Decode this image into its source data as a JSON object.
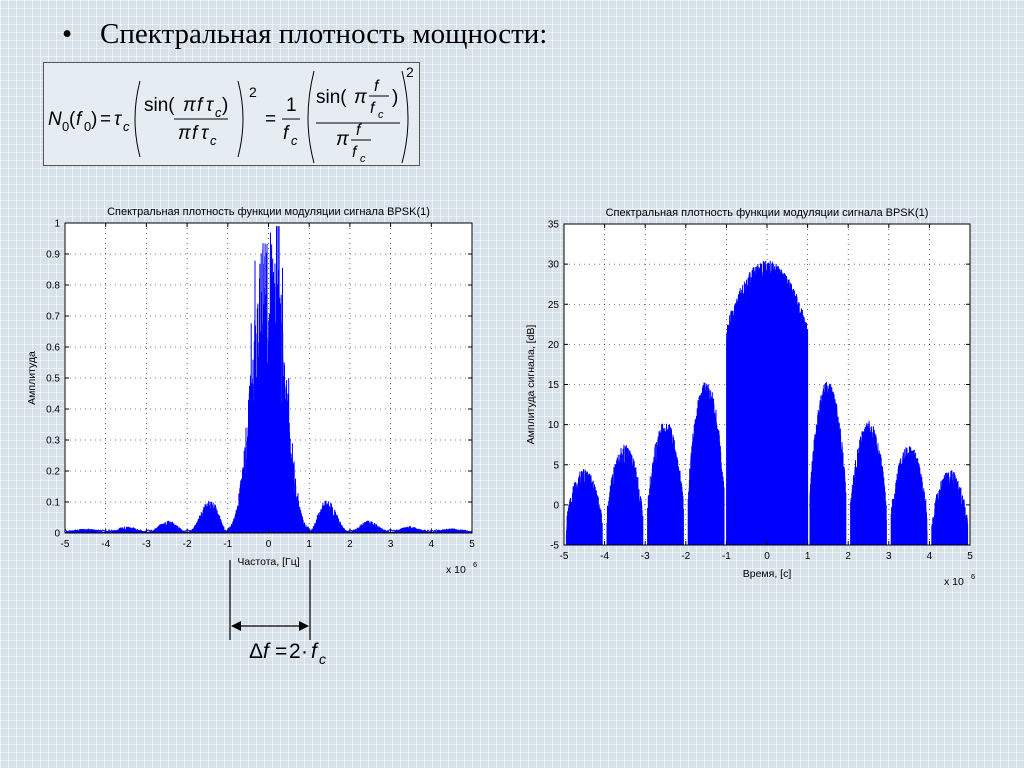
{
  "slide": {
    "bullet": "•",
    "title": "Спектральная плотность мощности:"
  },
  "formula": {
    "lhs_symbol": "N",
    "lhs_sub": "0",
    "lhs_arg_f": "f",
    "lhs_arg_sub": "0",
    "equals": "=",
    "tau": "τ",
    "tau_sub": "c",
    "sin_open": "sin(",
    "pi": "π",
    "f": "f",
    "close_paren": ")",
    "exponent": "2",
    "one": "1",
    "fc_f": "f",
    "fc_sub": "c"
  },
  "delta": {
    "delta_sym": "Δ",
    "f": "f",
    "equals": "=",
    "two": "2",
    "dot": "·",
    "fc_f": "f",
    "fc_sub": "c"
  },
  "chart_data": [
    {
      "type": "line",
      "title": "Спектральная плотность функции модуляции сигнала BPSK(1)",
      "xlabel": "Частота, [Гц]",
      "ylabel": "Амплитуда",
      "x_multiplier": "x 10",
      "x_multiplier_exp": "6",
      "xlim": [
        -5,
        5
      ],
      "ylim": [
        0,
        1
      ],
      "xticks": [
        "-5",
        "-4",
        "-3",
        "-2",
        "-1",
        "0",
        "1",
        "2",
        "3",
        "4",
        "5"
      ],
      "yticks": [
        "0",
        "0.1",
        "0.2",
        "0.3",
        "0.4",
        "0.5",
        "0.6",
        "0.7",
        "0.8",
        "0.9",
        "1"
      ],
      "grid": true,
      "color": "#0000ff",
      "series": [
        {
          "x": [
            -5,
            -4,
            -3,
            -2,
            -1.5,
            -1,
            -0.5,
            -0.2,
            0,
            0.2,
            0.5,
            1,
            1.5,
            2,
            3,
            4,
            5
          ],
          "y": [
            0.005,
            0.01,
            0.015,
            0.01,
            0.05,
            0.01,
            0.5,
            0.95,
            0.7,
            0.95,
            0.5,
            0.01,
            0.05,
            0.01,
            0.015,
            0.01,
            0.005
          ]
        }
      ]
    },
    {
      "type": "line",
      "title": "Спектральная плотность функции модуляции сигнала BPSK(1)",
      "xlabel": "Время, [с]",
      "ylabel": "Амплитуда сигнала, [dB]",
      "x_multiplier": "x 10",
      "x_multiplier_exp": "6",
      "xlim": [
        -5,
        5
      ],
      "ylim": [
        -5,
        35
      ],
      "xticks": [
        "-5",
        "-4",
        "-3",
        "-2",
        "-1",
        "0",
        "1",
        "2",
        "3",
        "4",
        "5"
      ],
      "yticks": [
        "-5",
        "0",
        "5",
        "10",
        "15",
        "20",
        "25",
        "30",
        "35"
      ],
      "grid": true,
      "color": "#0000ff",
      "series": [
        {
          "x": [
            -4.5,
            -3.5,
            -2.5,
            -1.5,
            -0.5,
            0,
            0.5,
            1.5,
            2.5,
            3.5,
            4.5
          ],
          "y": [
            7,
            8,
            12,
            16,
            30,
            31,
            30,
            16,
            12,
            8,
            7
          ]
        }
      ]
    }
  ]
}
